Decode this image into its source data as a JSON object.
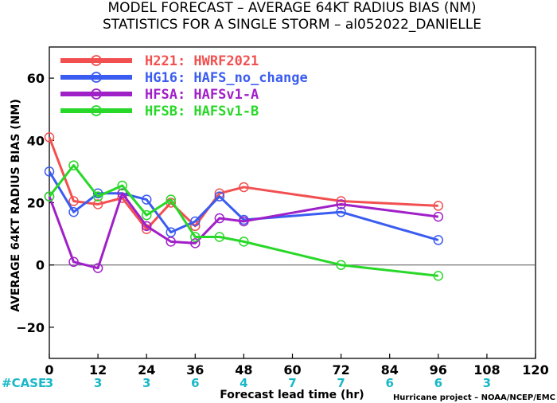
{
  "chart_data": {
    "type": "line",
    "title": "MODEL FORECAST – AVERAGE 64KT RADIUS BIAS (NM)",
    "subtitle": "STATISTICS FOR A SINGLE STORM – al052022_DANIELLE",
    "xlabel": "Forecast lead time (hr)",
    "ylabel": "AVERAGE 64KT RADIUS BIAS (NM)",
    "xlim": [
      0,
      120
    ],
    "ylim": [
      -30,
      70
    ],
    "xticks": [
      0,
      12,
      24,
      36,
      48,
      60,
      72,
      84,
      96,
      108,
      120
    ],
    "yticks": [
      -20,
      0,
      20,
      40,
      60
    ],
    "grid": false,
    "zero_line": true,
    "legend_position": "top-left",
    "case_label": "#CASE",
    "case_counts": [
      {
        "x": 0,
        "n": "3"
      },
      {
        "x": 12,
        "n": "3"
      },
      {
        "x": 24,
        "n": "3"
      },
      {
        "x": 36,
        "n": "6"
      },
      {
        "x": 48,
        "n": "4"
      },
      {
        "x": 60,
        "n": "7"
      },
      {
        "x": 72,
        "n": "7"
      },
      {
        "x": 84,
        "n": "6"
      },
      {
        "x": 96,
        "n": "6"
      },
      {
        "x": 108,
        "n": "3"
      }
    ],
    "series": [
      {
        "name": "H221: HWRF2021",
        "color": "#f25050",
        "x": [
          0,
          6,
          12,
          18,
          24,
          30,
          36,
          42,
          48,
          72,
          96
        ],
        "y": [
          41,
          20.5,
          19.5,
          21.5,
          11.5,
          20,
          12.5,
          23,
          25,
          20.5,
          19
        ]
      },
      {
        "name": "HG16: HAFS_no_change",
        "color": "#3a5cf0",
        "x": [
          0,
          6,
          12,
          18,
          24,
          30,
          36,
          42,
          48,
          72,
          96
        ],
        "y": [
          30,
          17,
          23,
          23,
          21,
          10.5,
          14,
          22,
          14.5,
          17,
          8
        ]
      },
      {
        "name": "HFSA: HAFSv1-A",
        "color": "#a020c8",
        "x": [
          0,
          6,
          12,
          18,
          24,
          30,
          36,
          42,
          48,
          72,
          96
        ],
        "y": [
          22,
          1,
          -1,
          23,
          12.5,
          7.5,
          7,
          15,
          14,
          19.5,
          15.5
        ]
      },
      {
        "name": "HFSB: HAFSv1-B",
        "color": "#28d828",
        "x": [
          0,
          6,
          12,
          18,
          24,
          30,
          36,
          42,
          48,
          72,
          96
        ],
        "y": [
          22,
          32,
          22,
          25.5,
          16,
          21,
          9,
          9,
          7.5,
          0,
          -3.5
        ]
      }
    ],
    "footer": "Hurricane project – NOAA/NCEP/EMC"
  }
}
